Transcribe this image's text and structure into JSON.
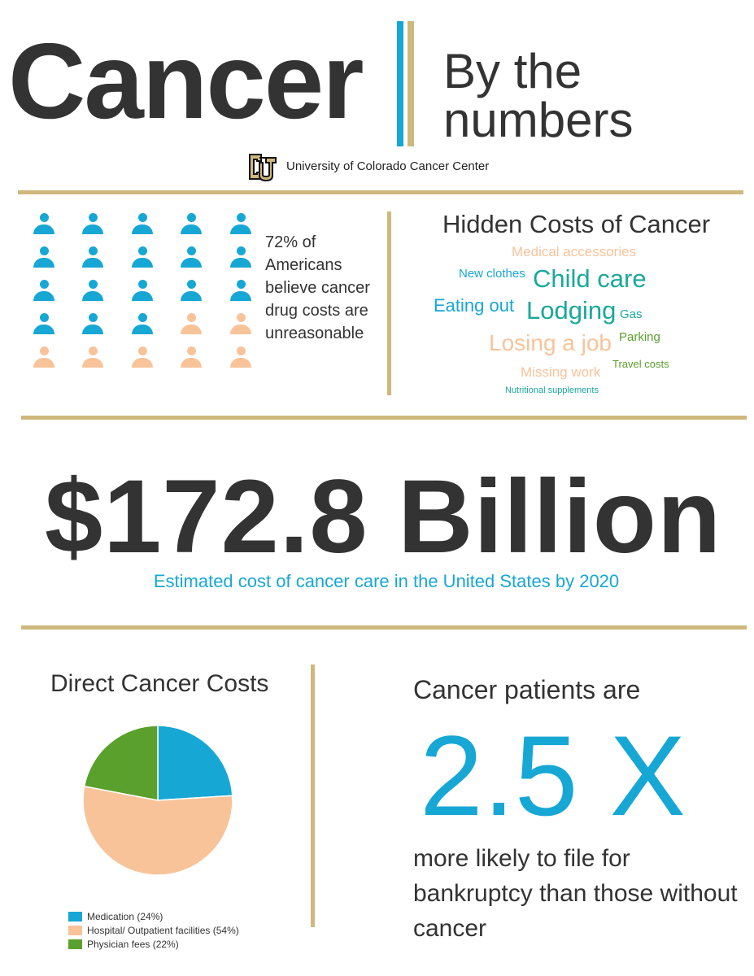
{
  "header": {
    "title": "Cancer",
    "subtitle_line1": "By the",
    "subtitle_line2": "numbers",
    "org": "University of Colorado Cancer Center",
    "logo_icon": "cu-logo-icon"
  },
  "people_stat": {
    "text": "72% of Americans believe cancer drug costs are unreasonable",
    "percent": 72,
    "total_icons": 25,
    "highlight_icons": 18,
    "highlight_color": "#17a7d4",
    "other_color": "#f9c39a"
  },
  "hidden_costs": {
    "title": "Hidden Costs of Cancer",
    "words": [
      {
        "text": "Medical accessories",
        "color": "#f9c39a"
      },
      {
        "text": "New clothes",
        "color": "#17a7d4"
      },
      {
        "text": "Child care",
        "color": "#1aa89a"
      },
      {
        "text": "Eating out",
        "color": "#17a7d4"
      },
      {
        "text": "Lodging",
        "color": "#1aa89a"
      },
      {
        "text": "Gas",
        "color": "#1aa89a"
      },
      {
        "text": "Losing a job",
        "color": "#f9c39a"
      },
      {
        "text": "Parking",
        "color": "#5aa02c"
      },
      {
        "text": "Missing work",
        "color": "#f9c39a"
      },
      {
        "text": "Travel costs",
        "color": "#5aa02c"
      },
      {
        "text": "Nutritional supplements",
        "color": "#1aa89a"
      }
    ]
  },
  "big_stat": {
    "value": "$172.8 Billion",
    "caption": "Estimated cost of cancer care in the United States by 2020"
  },
  "direct_costs": {
    "title": "Direct Cancer Costs",
    "legend": [
      {
        "label": "Medication (24%)",
        "color": "#17a7d4"
      },
      {
        "label": "Hospital/ Outpatient facilities (54%)",
        "color": "#f9c39a"
      },
      {
        "label": "Physician fees (22%)",
        "color": "#5aa02c"
      }
    ]
  },
  "chart_data": {
    "type": "pie",
    "title": "Direct Cancer Costs",
    "categories": [
      "Medication",
      "Hospital/ Outpatient facilities",
      "Physician fees"
    ],
    "values": [
      24,
      54,
      22
    ],
    "colors": [
      "#17a7d4",
      "#f9c39a",
      "#5aa02c"
    ],
    "legend": "bottom-left"
  },
  "bankruptcy": {
    "intro": "Cancer patients are",
    "multiplier": "2.5 X",
    "text": "more likely to file for bankruptcy than those without cancer"
  },
  "colors": {
    "accent_blue": "#17a7d4",
    "gold": "#cfb87c",
    "dark_text": "#333333"
  }
}
